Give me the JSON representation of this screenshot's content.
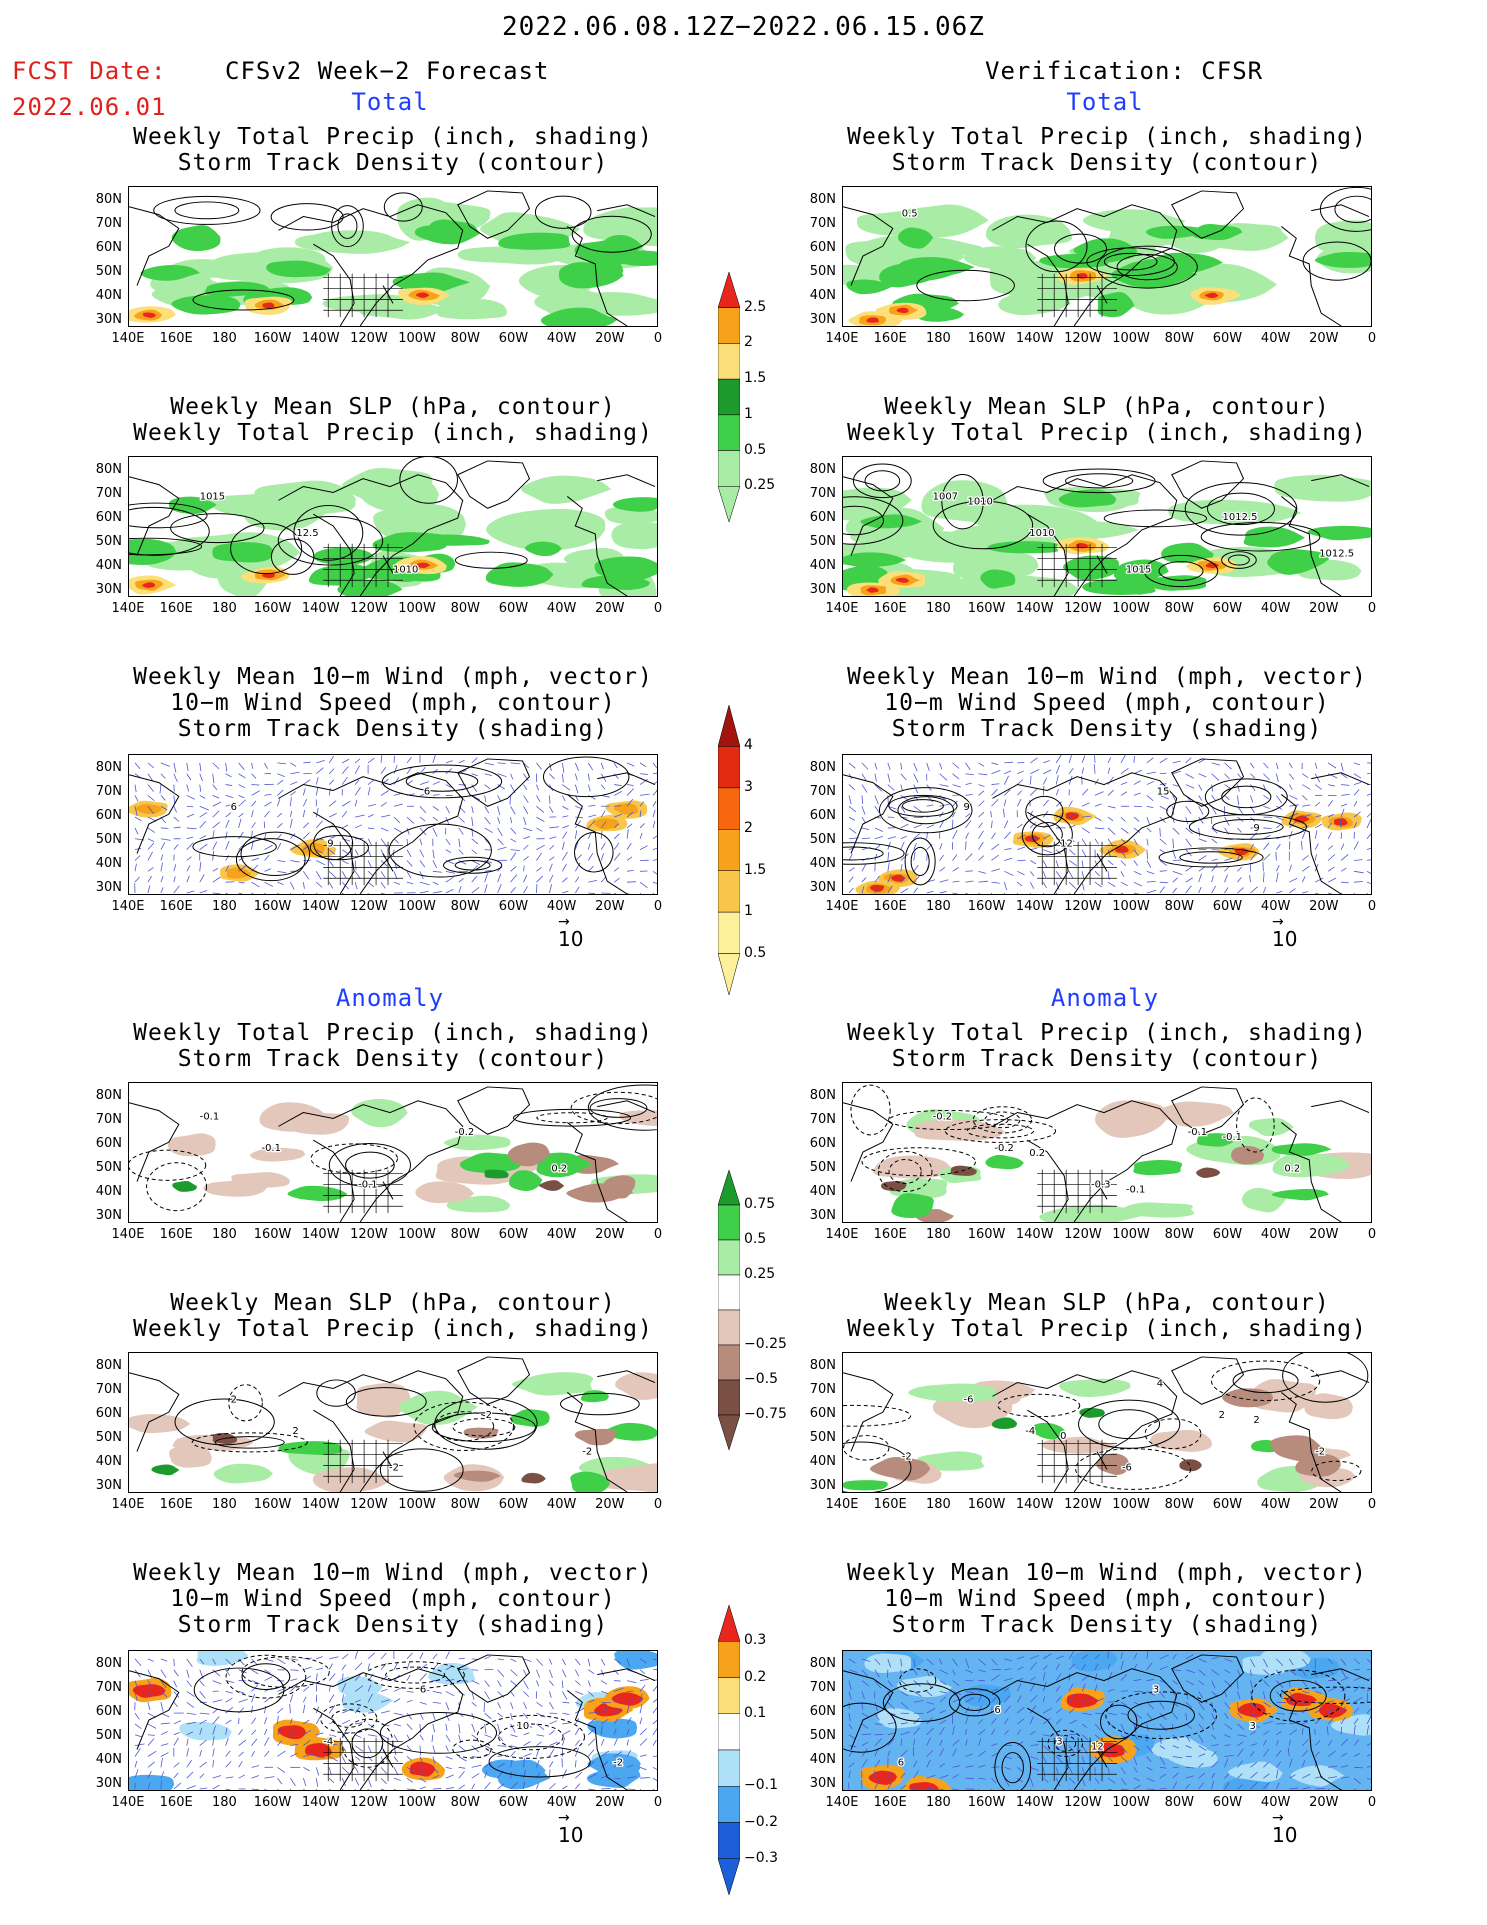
{
  "header": {
    "period": "2022.06.08.12Z−2022.06.15.06Z",
    "fcst_label": "FCST Date:",
    "fcst_date": "2022.06.01",
    "left_model": "CFSv2 Week−2 Forecast",
    "right_model": "Verification: CFSR"
  },
  "sections": {
    "total": "Total",
    "anomaly": "Anomaly"
  },
  "panel_titles": {
    "precip_storm": [
      "Weekly Total Precip (inch, shading)",
      "Storm Track Density (contour)"
    ],
    "slp_precip": [
      "Weekly Mean SLP (hPa, contour)",
      "Weekly Total Precip (inch, shading)"
    ],
    "wind_storm": [
      "Weekly Mean 10−m Wind (mph, vector)",
      "10−m Wind Speed (mph, contour)",
      "Storm Track Density (shading)"
    ]
  },
  "axes": {
    "lat_labels": [
      "80N",
      "70N",
      "60N",
      "50N",
      "40N",
      "30N"
    ],
    "lon_labels": [
      "140E",
      "160E",
      "180",
      "160W",
      "140W",
      "120W",
      "100W",
      "80W",
      "60W",
      "40W",
      "20W",
      "0"
    ]
  },
  "vector_ref": "10",
  "colorbars": {
    "total_precip": {
      "labels": [
        "2.5",
        "2",
        "1.5",
        "1",
        "0.5",
        "0.25"
      ],
      "colors": [
        "#e8261e",
        "#f7a21b",
        "#fbe07a",
        "#1c9a2b",
        "#3fcf48",
        "#a8eca5"
      ]
    },
    "total_storm": {
      "labels": [
        "4",
        "3",
        "2",
        "1.5",
        "1",
        "0.5"
      ],
      "colors": [
        "#a3150c",
        "#e52a12",
        "#f5660e",
        "#f7a21b",
        "#f9c64c",
        "#fdf09b"
      ]
    },
    "anom_precip": {
      "labels": [
        "0.75",
        "0.5",
        "0.25",
        "−0.25",
        "−0.5",
        "−0.75"
      ],
      "colors": [
        "#1c9a2b",
        "#3fcf48",
        "#a8eca5",
        "#ffffff",
        "#e4c7bb",
        "#b88c7d",
        "#7b5044"
      ]
    },
    "anom_storm": {
      "labels": [
        "0.3",
        "0.2",
        "0.1",
        "−0.1",
        "−0.2",
        "−0.3"
      ],
      "colors": [
        "#e8261e",
        "#f7a21b",
        "#fbe07a",
        "#ffffff",
        "#aee1f7",
        "#4aa7f0",
        "#1d5fd8"
      ]
    }
  },
  "contour_labels": {
    "fc_slp_total": [
      "1015",
      "12.5",
      "1010"
    ],
    "ob_slp_total": [
      "1007",
      "1010",
      "1015",
      "1012.5",
      "1012.5",
      "1010"
    ],
    "ob_precip_total": [
      "0.5"
    ],
    "ob_wind_total": [
      "9",
      "12",
      "15",
      "9"
    ],
    "fc_wind_total": [
      "6",
      "9",
      "6"
    ],
    "fc_precip_anom": [
      "-0.1",
      "-0.1",
      "-0.2",
      "0.2",
      "-0.1"
    ],
    "ob_precip_anom": [
      "-0.2",
      "-0.3",
      "-0.1",
      "0.2",
      "-0.2",
      "0.2",
      "-0.1",
      "-0.1"
    ],
    "fc_slp_anom": [
      "2",
      "-2",
      "2",
      "-2",
      "2"
    ],
    "ob_slp_anom": [
      "-4",
      "-6",
      "2",
      "-2",
      "-6",
      "0",
      "4",
      "2",
      "-2"
    ],
    "fc_wind_anom": [
      "-4",
      "6",
      "10",
      "-2"
    ],
    "ob_wind_anom": [
      "3",
      "3",
      "3",
      "6",
      "6",
      "12"
    ]
  }
}
